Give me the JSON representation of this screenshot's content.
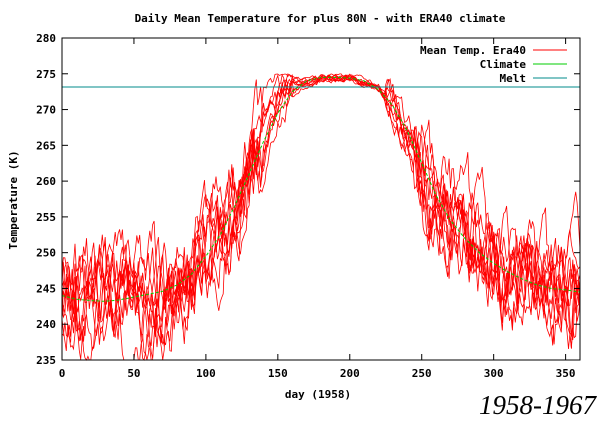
{
  "chart_data": {
    "type": "line",
    "title": "Daily Mean Temperature for plus 80N - with ERA40 climate",
    "xlabel": "day (1958)",
    "ylabel": "Temperature (K)",
    "xlim": [
      0,
      360
    ],
    "ylim": [
      235,
      280
    ],
    "xticks": [
      "0",
      "50",
      "100",
      "150",
      "200",
      "250",
      "300",
      "350"
    ],
    "yticks": [
      "235",
      "240",
      "245",
      "250",
      "255",
      "260",
      "265",
      "270",
      "275",
      "280"
    ],
    "grid": false,
    "legend_position": "top-right",
    "year_range_label": "1958-1967",
    "series": [
      {
        "name": "Mean Temp. Era40",
        "color": "#ff0000",
        "note_years": 10,
        "x": [
          0,
          20,
          40,
          60,
          80,
          100,
          120,
          140,
          150,
          160,
          180,
          200,
          220,
          230,
          240,
          260,
          280,
          300,
          320,
          340,
          360
        ],
        "y": [
          242.5,
          243.5,
          242.5,
          242.5,
          243.5,
          248.0,
          256.0,
          264.5,
          270.0,
          273.0,
          274.5,
          274.5,
          273.0,
          270.0,
          266.0,
          257.0,
          253.0,
          249.0,
          246.0,
          245.0,
          244.5
        ]
      },
      {
        "name": "Climate",
        "color": "#00cc00",
        "x": [
          0,
          10,
          20,
          30,
          40,
          50,
          60,
          70,
          80,
          90,
          100,
          110,
          120,
          130,
          140,
          150,
          160,
          170,
          180,
          190,
          200,
          210,
          220,
          230,
          240,
          250,
          260,
          270,
          280,
          290,
          300,
          310,
          320,
          330,
          340,
          350,
          360
        ],
        "y": [
          244.0,
          243.5,
          243.3,
          243.2,
          243.4,
          243.8,
          244.2,
          244.6,
          245.5,
          247.0,
          249.5,
          252.5,
          256.5,
          261.0,
          265.5,
          269.5,
          272.5,
          274.0,
          274.5,
          274.5,
          274.4,
          274.0,
          272.8,
          270.5,
          267.0,
          262.5,
          258.0,
          254.5,
          252.0,
          250.0,
          248.5,
          247.3,
          246.3,
          245.5,
          245.0,
          244.8,
          244.5
        ]
      },
      {
        "name": "Melt",
        "color": "#008b8b",
        "y_constant": 273.16
      }
    ]
  }
}
